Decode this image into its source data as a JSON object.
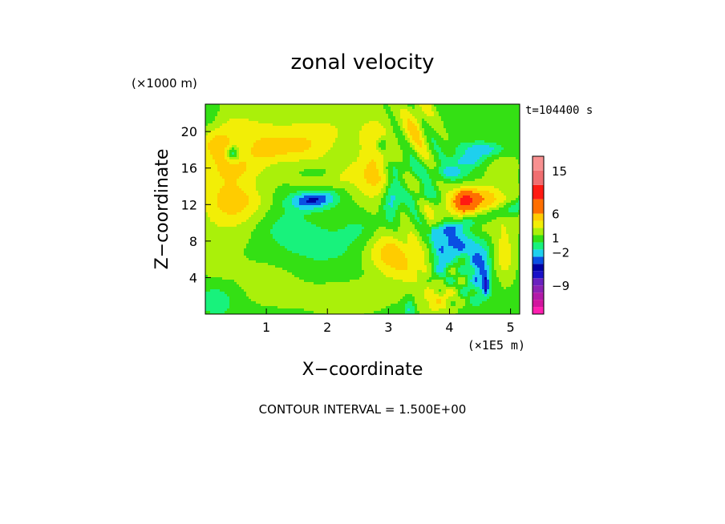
{
  "chart_data": {
    "type": "heatmap",
    "title": "zonal velocity",
    "xlabel": "X−coordinate",
    "ylabel": "Z−coordinate",
    "x_unit": "(×1E5 m)",
    "y_unit": "(×1000 m)",
    "time_label": "t=104400 s",
    "footer": "CONTOUR INTERVAL = 1.500E+00",
    "xlim": [
      0,
      5.15
    ],
    "ylim": [
      0,
      23
    ],
    "x_ticks": [
      1,
      2,
      3,
      4,
      5
    ],
    "y_ticks": [
      4,
      8,
      12,
      16,
      20
    ],
    "colorbar": {
      "levels": [
        -15,
        -13.5,
        -12,
        -10.5,
        -9,
        -7.5,
        -6,
        -4.5,
        -3,
        -1.5,
        0,
        1.5,
        3,
        4.5,
        6,
        9,
        12,
        15,
        18
      ],
      "colors": [
        "#ff1fb0",
        "#d2169e",
        "#b21aa8",
        "#8c22b4",
        "#6a22bf",
        "#1a10c8",
        "#0000a5",
        "#0a4fe3",
        "#1ed0ee",
        "#18f27c",
        "#34e014",
        "#aaf00a",
        "#f2ee06",
        "#ffcc00",
        "#ff6f00",
        "#ff1a12",
        "#f06e70",
        "#f89090",
        "#fbb8ba"
      ],
      "tick_labels": [
        {
          "label": "15",
          "value": 15
        },
        {
          "label": "6",
          "value": 6
        },
        {
          "label": "1",
          "value": 1
        },
        {
          "label": "−2",
          "value": -2
        },
        {
          "label": "−9",
          "value": -9
        }
      ]
    },
    "field": {
      "background": 1.0,
      "blobs": [
        {
          "x": 0.5,
          "z": 21,
          "sx": 0.45,
          "sz": 2.2,
          "v": 1.8
        },
        {
          "x": 1.5,
          "z": 20,
          "sx": 0.5,
          "sz": 2.2,
          "v": 1.2
        },
        {
          "x": 2.2,
          "z": 20.5,
          "sx": 0.5,
          "sz": 2.0,
          "v": 1.4
        },
        {
          "x": 0.2,
          "z": 13.5,
          "sx": 0.3,
          "sz": 3.5,
          "v": 1.6
        },
        {
          "x": 0.5,
          "z": 11,
          "sx": 0.4,
          "sz": 2.5,
          "v": 1.2
        },
        {
          "x": 1.05,
          "z": 3.5,
          "sx": 0.45,
          "sz": 1.8,
          "v": 1.4
        },
        {
          "x": 2.3,
          "z": 1.8,
          "sx": 0.5,
          "sz": 1.4,
          "v": 1.4
        },
        {
          "x": 0.2,
          "z": 5.5,
          "sx": 0.2,
          "sz": 1.2,
          "v": 1.4
        },
        {
          "x": 0.5,
          "z": 8.5,
          "sx": 0.6,
          "sz": 1.4,
          "v": 0.2
        },
        {
          "x": 2.3,
          "z": 12,
          "sx": 0.35,
          "sz": 3.0,
          "v": 0.15
        },
        {
          "x": 0.05,
          "z": 22,
          "sx": 0.15,
          "sz": 1.5,
          "v": -1.6
        },
        {
          "x": 0.2,
          "z": 1.5,
          "sx": 0.25,
          "sz": 1.4,
          "v": -1.8
        },
        {
          "x": 1.85,
          "z": 7.5,
          "sx": 0.6,
          "sz": 1.6,
          "v": -1.5
        },
        {
          "x": 1.3,
          "z": 9.5,
          "sx": 0.35,
          "sz": 1.2,
          "v": -1.4
        },
        {
          "x": 2.6,
          "z": 9.5,
          "sx": 0.25,
          "sz": 1.2,
          "v": -1.3
        },
        {
          "x": 1.75,
          "z": 4.5,
          "sx": 0.4,
          "sz": 1.2,
          "v": -0.4
        },
        {
          "x": 0.2,
          "z": 18.5,
          "sx": 0.2,
          "sz": 1.2,
          "v": 3.2
        },
        {
          "x": 0.5,
          "z": 16,
          "sx": 0.3,
          "sz": 1.1,
          "v": 2.6
        },
        {
          "x": 0.55,
          "z": 12.5,
          "sx": 0.3,
          "sz": 1.5,
          "v": 2.6
        },
        {
          "x": 0.95,
          "z": 18,
          "sx": 0.25,
          "sz": 1.3,
          "v": 2.4
        },
        {
          "x": 1.5,
          "z": 18.3,
          "sx": 0.35,
          "sz": 1.1,
          "v": 2.6
        },
        {
          "x": 2.25,
          "z": 15,
          "sx": 0.5,
          "sz": 1.3,
          "v": 2.7
        },
        {
          "x": 2.8,
          "z": 16.5,
          "sx": 0.2,
          "sz": 3.5,
          "v": 3.0
        },
        {
          "x": 3.45,
          "z": 21,
          "sx": 0.15,
          "sz": 2.5,
          "v": 3.0
        },
        {
          "x": 2.95,
          "z": 7,
          "sx": 0.25,
          "sz": 1.6,
          "v": 3.2
        },
        {
          "x": 3.3,
          "z": 5.5,
          "sx": 0.3,
          "sz": 1.8,
          "v": 3.0
        },
        {
          "x": 3.8,
          "z": 1.5,
          "sx": 0.2,
          "sz": 1.3,
          "v": 3.0
        },
        {
          "x": 4.45,
          "z": 11.5,
          "sx": 0.5,
          "sz": 1.6,
          "v": 3.6
        },
        {
          "x": 4.25,
          "z": 12.5,
          "sx": 0.12,
          "sz": 0.8,
          "v": 6.5
        },
        {
          "x": 4.55,
          "z": 13,
          "sx": 0.2,
          "sz": 0.8,
          "v": 2.2
        },
        {
          "x": 4.9,
          "z": 6.5,
          "sx": 0.12,
          "sz": 2.0,
          "v": 3.0
        },
        {
          "x": 4.85,
          "z": 16.5,
          "sx": 0.2,
          "sz": 1.5,
          "v": 1.5
        },
        {
          "x": 0.45,
          "z": 17.6,
          "sx": 0.07,
          "sz": 0.55,
          "v": -5.0
        },
        {
          "x": 1.75,
          "z": 12.5,
          "sx": 0.28,
          "sz": 0.7,
          "v": -4.5
        },
        {
          "x": 3.05,
          "z": 12.6,
          "sx": 0.1,
          "sz": 1.5,
          "v": -4.2
        },
        {
          "x": 2.9,
          "z": 18.5,
          "sx": 0.06,
          "sz": 0.55,
          "v": -3.5
        },
        {
          "x": 3.15,
          "z": 16,
          "sx": 0.22,
          "sz": 0.7,
          "v": -2.2
        },
        {
          "x": 3.55,
          "z": 13,
          "sx": 0.16,
          "sz": 0.6,
          "v": -2.2
        },
        {
          "x": 1.9,
          "z": 15.5,
          "sx": 0.25,
          "sz": 0.6,
          "v": -2.0
        },
        {
          "x": 4.1,
          "z": 7.8,
          "sx": 0.22,
          "sz": 1.2,
          "v": -4.8
        },
        {
          "x": 4.5,
          "z": 5.5,
          "sx": 0.12,
          "sz": 1.5,
          "v": -4.5
        },
        {
          "x": 3.85,
          "z": 5.5,
          "sx": 0.1,
          "sz": 1.5,
          "v": -3.2
        },
        {
          "x": 4.55,
          "z": 18,
          "sx": 0.28,
          "sz": 0.6,
          "v": -3.8
        },
        {
          "x": 4.3,
          "z": 16.8,
          "sx": 0.2,
          "sz": 0.5,
          "v": -3.0
        },
        {
          "x": 4.05,
          "z": 15.5,
          "sx": 0.22,
          "sz": 0.6,
          "v": -3.0
        },
        {
          "x": 4.5,
          "z": 2.5,
          "sx": 0.15,
          "sz": 1.3,
          "v": -1.8
        },
        {
          "x": 4.6,
          "z": 3.3,
          "sx": 0.03,
          "sz": 0.6,
          "v": -6.5
        },
        {
          "x": 3.35,
          "z": 0.6,
          "sx": 0.06,
          "sz": 0.8,
          "v": -3.0
        }
      ]
    }
  }
}
